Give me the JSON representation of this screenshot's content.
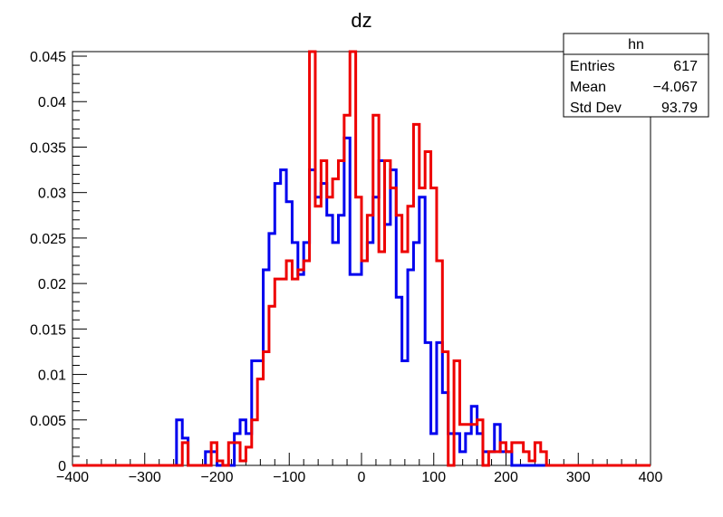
{
  "chart_data": {
    "type": "histogram",
    "title": "dz",
    "xlabel": "",
    "ylabel": "",
    "xlim": [
      -400,
      400
    ],
    "ylim": [
      0,
      0.0455
    ],
    "bin_width": 8,
    "x_ticks": [
      -400,
      -300,
      -200,
      -100,
      0,
      100,
      200,
      300,
      400
    ],
    "x_tick_labels": [
      "−400",
      "−300",
      "−200",
      "−100",
      "0",
      "100",
      "200",
      "300",
      "400"
    ],
    "y_ticks": [
      0,
      0.005,
      0.01,
      0.015,
      0.02,
      0.025,
      0.03,
      0.035,
      0.04,
      0.045
    ],
    "y_tick_labels": [
      "0",
      "0.005",
      "0.01",
      "0.015",
      "0.02",
      "0.025",
      "0.03",
      "0.035",
      "0.04",
      "0.045"
    ],
    "grid": false,
    "series": [
      {
        "color": "#0000ee",
        "start": -264,
        "values": [
          0,
          0.005,
          0.003,
          0,
          0,
          0,
          0.0015,
          0.0015,
          0,
          0,
          0,
          0.0035,
          0.005,
          0.0035,
          0.0115,
          0.0115,
          0.0215,
          0.0255,
          0.031,
          0.0325,
          0.029,
          0.0245,
          0.021,
          0.0245,
          0.0325,
          0.0295,
          0.031,
          0.0275,
          0.0245,
          0.0275,
          0.036,
          0.021,
          0.021,
          0.0225,
          0.0245,
          0.0295,
          0.0335,
          0.0265,
          0.0325,
          0.0185,
          0.0115,
          0.0215,
          0.0245,
          0.0295,
          0.0135,
          0.0035,
          0.0135,
          0.008,
          0.0035,
          0.0035,
          0.0015,
          0.0035,
          0.0065,
          0.0035,
          0.0015,
          0.0015,
          0.0045,
          0.0015,
          0.0015,
          0
        ]
      },
      {
        "color": "#ee0000",
        "start": -264,
        "values": [
          0,
          0,
          0.0025,
          0,
          0,
          0,
          0,
          0.0025,
          0.0005,
          0,
          0.0025,
          0.0025,
          0.0005,
          0.002,
          0.005,
          0.0095,
          0.0125,
          0.0175,
          0.0205,
          0.0205,
          0.0225,
          0.0205,
          0.0215,
          0.0225,
          0.0455,
          0.0285,
          0.0335,
          0.0295,
          0.0315,
          0.0335,
          0.0385,
          0.0455,
          0.0295,
          0.0225,
          0.0275,
          0.0385,
          0.0235,
          0.0335,
          0.0305,
          0.0275,
          0.0235,
          0.0285,
          0.0375,
          0.0305,
          0.0345,
          0.0305,
          0.0225,
          0.0125,
          0,
          0.0115,
          0.0045,
          0.0045,
          0.0045,
          0.005,
          0,
          0.0015,
          0.0015,
          0.0025,
          0.0015,
          0.0025,
          0.0025,
          0.0015,
          0.0005,
          0.0025,
          0.0015,
          0
        ]
      }
    ],
    "stats_box": {
      "title": "hn",
      "rows": [
        {
          "label": "Entries",
          "value": "617"
        },
        {
          "label": "Mean",
          "value": "−4.067"
        },
        {
          "label": "Std Dev",
          "value": "93.79"
        }
      ],
      "placement": "top-right"
    }
  }
}
